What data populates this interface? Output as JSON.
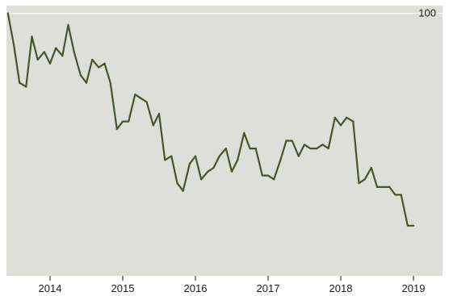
{
  "chart_data": {
    "type": "line",
    "title": "",
    "xlabel": "",
    "ylabel": "",
    "xlim": [
      2013.4,
      2019.4
    ],
    "ylim": [
      32,
      102
    ],
    "grid": "single-horizontal-gridline-at-100",
    "legend": "none",
    "x_ticks": [
      {
        "value": 2014,
        "label": "2014"
      },
      {
        "value": 2015,
        "label": "2015"
      },
      {
        "value": 2016,
        "label": "2016"
      },
      {
        "value": 2017,
        "label": "2017"
      },
      {
        "value": 2018,
        "label": "2018"
      },
      {
        "value": 2019,
        "label": "2019"
      }
    ],
    "y_ticks": [
      {
        "value": 100,
        "label": "100"
      }
    ],
    "series": [
      {
        "name": "",
        "color": "#44562a",
        "x": [
          2013.42,
          2013.5,
          2013.58,
          2013.67,
          2013.75,
          2013.83,
          2013.92,
          2014.0,
          2014.08,
          2014.17,
          2014.25,
          2014.33,
          2014.42,
          2014.5,
          2014.58,
          2014.67,
          2014.75,
          2014.83,
          2014.92,
          2015.0,
          2015.08,
          2015.17,
          2015.25,
          2015.33,
          2015.42,
          2015.5,
          2015.58,
          2015.67,
          2015.75,
          2015.83,
          2015.92,
          2016.0,
          2016.08,
          2016.17,
          2016.25,
          2016.33,
          2016.42,
          2016.5,
          2016.58,
          2016.67,
          2016.75,
          2016.83,
          2016.92,
          2017.0,
          2017.08,
          2017.17,
          2017.25,
          2017.33,
          2017.42,
          2017.5,
          2017.58,
          2017.67,
          2017.75,
          2017.83,
          2017.92,
          2018.0,
          2018.08,
          2018.17,
          2018.25,
          2018.33,
          2018.42,
          2018.5,
          2018.58,
          2018.67,
          2018.75,
          2018.83,
          2018.92,
          2019.0
        ],
        "y": [
          100,
          92,
          82,
          81,
          94,
          88,
          90,
          87,
          91,
          89,
          97,
          90,
          84,
          82,
          88,
          86,
          87,
          82,
          70,
          72,
          72,
          79,
          78,
          77,
          71,
          74,
          62,
          63,
          56,
          54,
          61,
          63,
          57,
          59,
          60,
          63,
          65,
          59,
          62,
          69,
          65,
          65,
          58,
          58,
          57,
          62,
          67,
          67,
          63,
          66,
          65,
          65,
          66,
          65,
          73,
          71,
          73,
          72,
          56,
          57,
          60,
          55,
          55,
          55,
          53,
          53,
          45,
          45
        ]
      }
    ]
  }
}
